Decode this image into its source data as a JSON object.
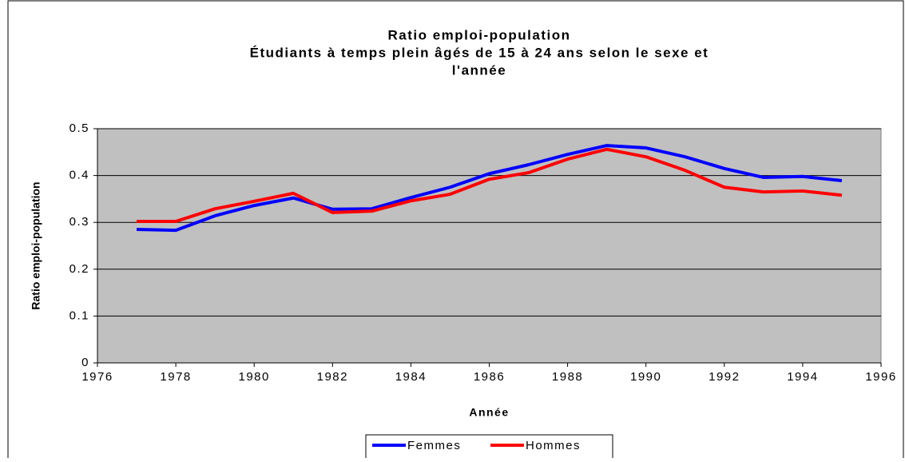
{
  "chart_data": {
    "type": "line",
    "title": [
      "Ratio emploi-population",
      "Étudiants à temps plein âgés de 15 à 24 ans selon le sexe et",
      "l'année"
    ],
    "x_label": "Année",
    "y_label": "Ratio emploi-population",
    "x": [
      1977,
      1978,
      1979,
      1980,
      1981,
      1982,
      1983,
      1984,
      1985,
      1986,
      1987,
      1988,
      1989,
      1990,
      1991,
      1992,
      1993,
      1994,
      1995
    ],
    "series": [
      {
        "name": "Femmes",
        "color": "#0000ff",
        "values": [
          0.285,
          0.283,
          0.314,
          0.336,
          0.352,
          0.328,
          0.329,
          0.353,
          0.375,
          0.404,
          0.423,
          0.445,
          0.464,
          0.459,
          0.44,
          0.415,
          0.396,
          0.398,
          0.389
        ]
      },
      {
        "name": "Hommes",
        "color": "#ff0000",
        "values": [
          0.302,
          0.302,
          0.329,
          0.345,
          0.362,
          0.321,
          0.324,
          0.346,
          0.36,
          0.392,
          0.406,
          0.435,
          0.456,
          0.44,
          0.411,
          0.375,
          0.365,
          0.367,
          0.358
        ]
      }
    ],
    "xlim": [
      1976,
      1996
    ],
    "xticks": [
      1976,
      1978,
      1980,
      1982,
      1984,
      1986,
      1988,
      1990,
      1992,
      1994,
      1996
    ],
    "ylim": [
      0,
      0.5
    ],
    "yticks": [
      0,
      0.1,
      0.2,
      0.3,
      0.4,
      0.5
    ],
    "grid": true,
    "legend": "bottom",
    "plot_background": "#c0c0c0"
  }
}
